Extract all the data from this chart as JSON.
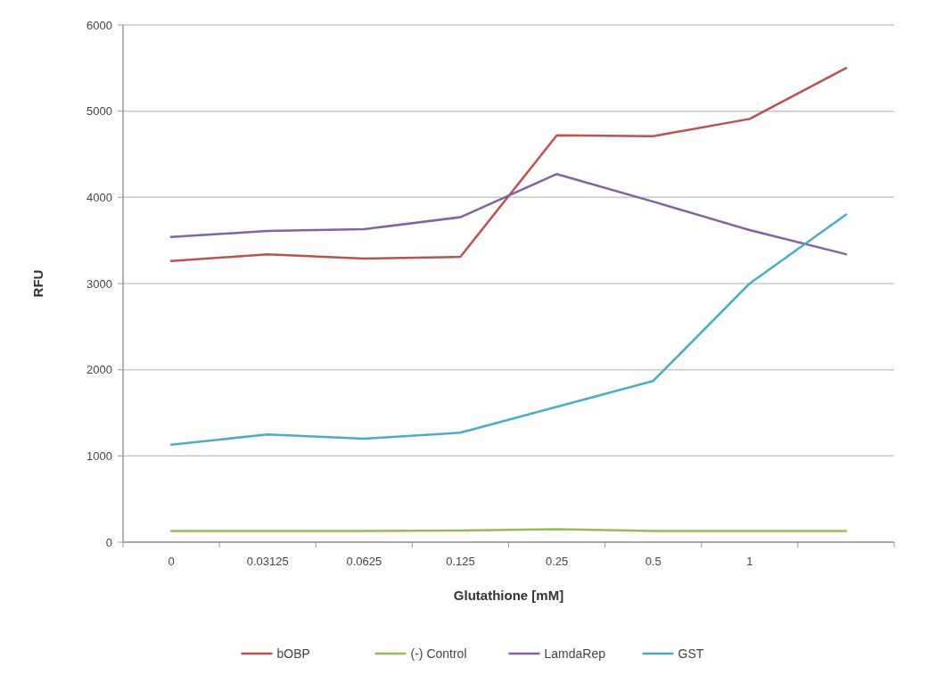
{
  "chart_data": {
    "type": "line",
    "xlabel": "Glutathione [mM]",
    "ylabel": "RFU",
    "categories": [
      "0",
      "0.03125",
      "0.0625",
      "0.125",
      "0.25",
      "0.5",
      "1",
      null
    ],
    "series": [
      {
        "name": "bOBP",
        "color": "#c0504d",
        "values": [
          3260,
          3340,
          3290,
          3310,
          4720,
          4710,
          4910,
          5500
        ]
      },
      {
        "name": "(-) Control",
        "color": "#9bbb59",
        "values": [
          130,
          130,
          130,
          135,
          150,
          130,
          130,
          130
        ]
      },
      {
        "name": "LamdaRep",
        "color": "#8064a2",
        "values": [
          3540,
          3610,
          3630,
          3770,
          4270,
          3950,
          3620,
          3340
        ]
      },
      {
        "name": "GST",
        "color": "#4bacc6",
        "values": [
          1130,
          1250,
          1200,
          1270,
          1570,
          1870,
          3000,
          3800
        ]
      }
    ],
    "ylim": [
      0,
      6000
    ],
    "yticks": [
      0,
      1000,
      2000,
      3000,
      4000,
      5000,
      6000
    ],
    "grid": "y",
    "legend": "bottom",
    "marker": "none",
    "line_style": "solid"
  }
}
